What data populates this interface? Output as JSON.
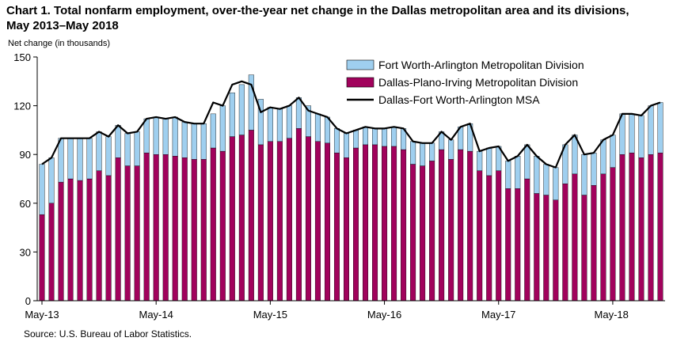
{
  "title_line1": "Chart 1. Total nonfarm employment, over-the-year net change in the Dallas metropolitan area and its divisions,",
  "title_line2": "May 2013–May 2018",
  "ylabel": "Net change (in thousands)",
  "source": "Source: U.S. Bureau of Labor Statistics.",
  "chart_data": {
    "type": "bar",
    "stacked": true,
    "ylim": [
      0,
      150
    ],
    "yticks": [
      0,
      30,
      60,
      90,
      120,
      150
    ],
    "xtick_labels": [
      {
        "index": 0,
        "label": "May-13"
      },
      {
        "index": 12,
        "label": "May-14"
      },
      {
        "index": 24,
        "label": "May-15"
      },
      {
        "index": 36,
        "label": "May-16"
      },
      {
        "index": 48,
        "label": "May-17"
      },
      {
        "index": 60,
        "label": "May-18"
      }
    ],
    "legend_position": "top-right",
    "series": [
      {
        "name": "Fort Worth-Arlington Metropolitan Division",
        "color": "#9fcfef",
        "values": [
          31,
          28,
          27,
          25,
          26,
          25,
          24,
          24,
          20,
          20,
          21,
          21,
          23,
          22,
          24,
          22,
          22,
          22,
          21,
          28,
          27,
          31,
          34,
          28,
          21,
          20,
          20,
          19,
          19,
          17,
          16,
          15,
          15,
          11,
          11,
          10,
          11,
          12,
          13,
          14,
          14,
          11,
          11,
          12,
          14,
          17,
          12,
          17,
          15,
          17,
          20,
          21,
          23,
          19,
          20,
          24,
          24,
          25,
          20,
          21,
          20,
          25,
          24,
          26,
          30,
          31
        ]
      },
      {
        "name": "Dallas-Plano-Irving Metropolitan Division",
        "color": "#a1025c",
        "values": [
          53,
          60,
          73,
          75,
          74,
          75,
          80,
          77,
          88,
          83,
          83,
          91,
          90,
          90,
          89,
          88,
          87,
          87,
          94,
          92,
          101,
          102,
          105,
          96,
          98,
          98,
          100,
          106,
          101,
          98,
          97,
          91,
          88,
          94,
          96,
          96,
          95,
          95,
          93,
          84,
          83,
          86,
          93,
          87,
          93,
          92,
          80,
          77,
          80,
          69,
          69,
          75,
          66,
          65,
          62,
          72,
          78,
          65,
          71,
          78,
          82,
          90,
          91,
          88,
          90,
          91
        ]
      }
    ],
    "line_series": {
      "name": "Dallas-Fort Worth-Arlington MSA",
      "color": "#000000",
      "values": [
        84,
        88,
        100,
        100,
        100,
        100,
        104,
        101,
        108,
        103,
        104,
        112,
        113,
        112,
        113,
        110,
        109,
        109,
        122,
        120,
        133,
        135,
        133,
        116,
        119,
        118,
        120,
        125,
        117,
        115,
        113,
        106,
        103,
        105,
        107,
        106,
        106,
        107,
        106,
        98,
        97,
        97,
        104,
        99,
        107,
        109,
        92,
        94,
        95,
        86,
        89,
        96,
        89,
        84,
        82,
        96,
        102,
        90,
        91,
        99,
        102,
        115,
        115,
        114,
        120,
        122
      ]
    }
  }
}
